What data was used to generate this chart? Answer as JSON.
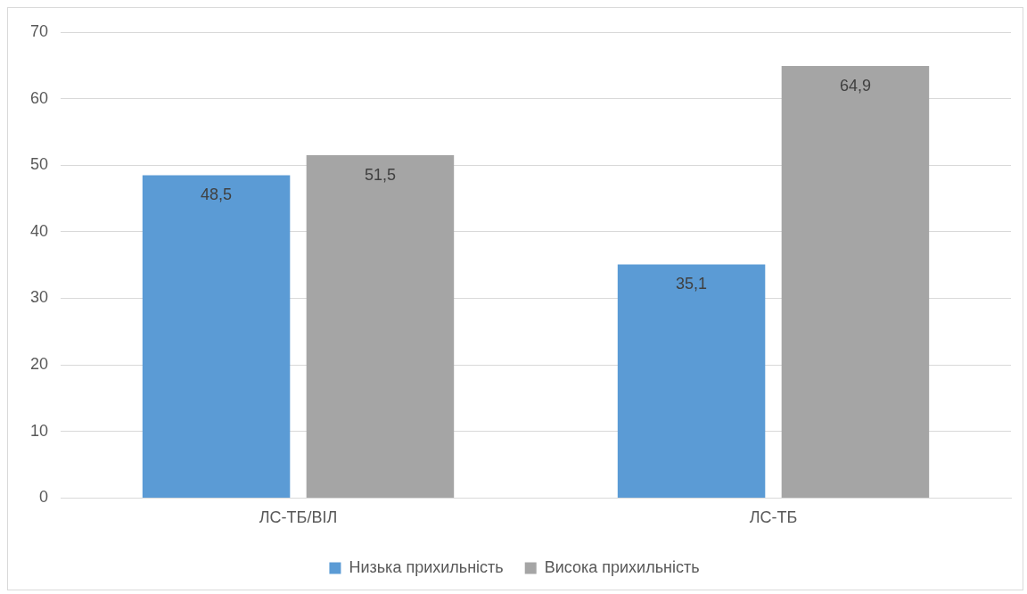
{
  "chart_data": {
    "type": "bar",
    "categories": [
      "ЛС-ТБ/ВІЛ",
      "ЛС-ТБ"
    ],
    "series": [
      {
        "name": "Низька прихильність",
        "color": "#5b9bd5",
        "values": [
          48.5,
          35.1
        ],
        "value_labels": [
          "48,5",
          "35,1"
        ]
      },
      {
        "name": "Висока прихильність",
        "color": "#a5a5a5",
        "values": [
          51.5,
          64.9
        ],
        "value_labels": [
          "51,5",
          "64,9"
        ]
      }
    ],
    "ylim": [
      0,
      70
    ],
    "yticks": [
      0,
      10,
      20,
      30,
      40,
      50,
      60,
      70
    ],
    "grid": "y",
    "legend": "bottom"
  }
}
